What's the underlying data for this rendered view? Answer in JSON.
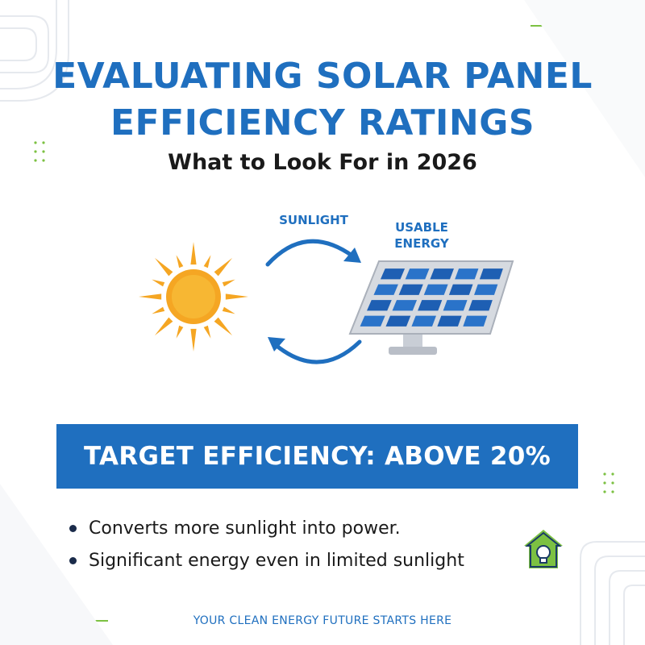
{
  "header": {
    "title_line1": "EVALUATING SOLAR PANEL",
    "title_line2": "EFFICIENCY RATINGS",
    "subtitle": "What to Look For in 2026"
  },
  "illustration": {
    "sunlight_label": "SUNLIGHT",
    "energy_label_line1": "USABLE",
    "energy_label_line2": "ENERGY",
    "icons": [
      "sun-icon",
      "solar-panel-icon",
      "cycle-arrow-icon"
    ]
  },
  "banner": {
    "text": "TARGET EFFICIENCY: ABOVE 20%"
  },
  "bullets": [
    "Converts more sunlight into power.",
    "Significant energy even in limited sunlight"
  ],
  "footer": {
    "text": "YOUR CLEAN ENERGY FUTURE STARTS HERE"
  },
  "logo": {
    "icon": "house-bulb-icon"
  },
  "colors": {
    "primary_blue": "#1f6fbf",
    "accent_green": "#7cc142",
    "sun_orange": "#f5a623",
    "text_dark": "#1a1a1a"
  }
}
